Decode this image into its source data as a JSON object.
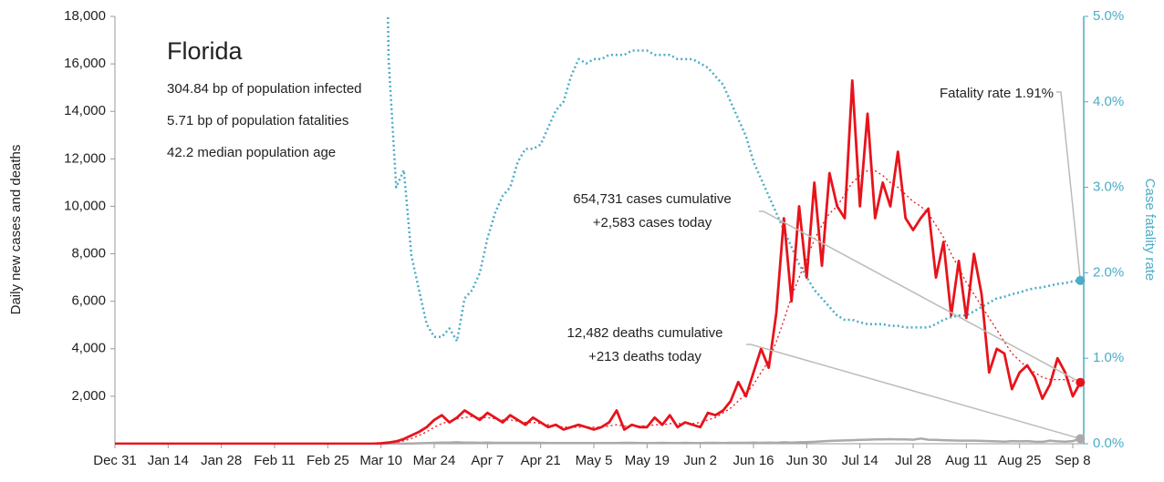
{
  "chart_data": {
    "type": "line",
    "title": "Florida",
    "annotations": [
      "304.84 bp of population infected",
      "5.71 bp of population fatalities",
      "42.2 median population age"
    ],
    "callouts": {
      "fatality": "Fatality rate 1.91%",
      "cases": [
        "654,731 cases cumulative",
        "+2,583 cases today"
      ],
      "deaths": [
        "12,482 deaths cumulative",
        "+213 deaths today"
      ]
    },
    "ylabel": "Daily new cases and deaths",
    "y2label": "Case fatality rate",
    "categories": [
      "Dec 31",
      null,
      null,
      null,
      null,
      null,
      null,
      "Jan 14",
      null,
      null,
      null,
      null,
      null,
      null,
      "Jan 28",
      null,
      null,
      null,
      null,
      null,
      null,
      "Feb 11",
      null,
      null,
      null,
      null,
      null,
      null,
      "Feb 25",
      null,
      null,
      null,
      null,
      null,
      null,
      "Mar 10",
      null,
      null,
      null,
      null,
      null,
      null,
      "Mar 24",
      null,
      null,
      null,
      null,
      null,
      null,
      "Apr 7",
      null,
      null,
      null,
      null,
      null,
      null,
      "Apr 21",
      null,
      null,
      null,
      null,
      null,
      null,
      "May 5",
      null,
      null,
      null,
      null,
      null,
      null,
      "May 19",
      null,
      null,
      null,
      null,
      null,
      null,
      "Jun 2",
      null,
      null,
      null,
      null,
      null,
      null,
      "Jun 16",
      null,
      null,
      null,
      null,
      null,
      null,
      "Jun 30",
      null,
      null,
      null,
      null,
      null,
      null,
      "Jul 14",
      null,
      null,
      null,
      null,
      null,
      null,
      "Jul 28",
      null,
      null,
      null,
      null,
      null,
      null,
      "Aug 11",
      null,
      null,
      null,
      null,
      null,
      null,
      "Aug 25",
      null,
      null,
      null,
      null,
      null,
      null,
      "Sep 8",
      null
    ],
    "series": [
      {
        "color": "#4bacc6",
        "style": "dotted",
        "axis": "y2",
        "width": 2.5,
        "values": [
          null,
          null,
          null,
          null,
          null,
          null,
          null,
          null,
          null,
          null,
          null,
          null,
          null,
          null,
          null,
          null,
          null,
          null,
          null,
          null,
          null,
          null,
          null,
          null,
          null,
          null,
          null,
          null,
          null,
          null,
          null,
          null,
          null,
          null,
          null,
          10,
          4.5,
          3.0,
          3.2,
          2.2,
          1.8,
          1.4,
          1.25,
          1.25,
          1.35,
          1.2,
          1.7,
          1.8,
          2.0,
          2.4,
          2.7,
          2.9,
          3.0,
          3.3,
          3.45,
          3.45,
          3.5,
          3.7,
          3.9,
          4.0,
          4.3,
          4.5,
          4.45,
          4.5,
          4.5,
          4.55,
          4.55,
          4.55,
          4.6,
          4.6,
          4.6,
          4.55,
          4.55,
          4.55,
          4.5,
          4.5,
          4.5,
          4.45,
          4.4,
          4.3,
          4.2,
          4.0,
          3.8,
          3.6,
          3.3,
          3.1,
          2.9,
          2.7,
          2.5,
          2.3,
          2.1,
          1.95,
          1.8,
          1.7,
          1.6,
          1.5,
          1.45,
          1.45,
          1.42,
          1.4,
          1.4,
          1.4,
          1.38,
          1.38,
          1.36,
          1.36,
          1.36,
          1.36,
          1.4,
          1.45,
          1.48,
          1.5,
          1.5,
          1.55,
          1.6,
          1.65,
          1.7,
          1.72,
          1.75,
          1.77,
          1.8,
          1.82,
          1.83,
          1.85,
          1.87,
          1.88,
          1.9,
          1.91
        ]
      },
      {
        "color": "#aaaaaa",
        "style": "solid",
        "width": 2.5,
        "values": [
          0,
          0,
          0,
          0,
          0,
          0,
          0,
          0,
          0,
          0,
          0,
          0,
          0,
          0,
          0,
          0,
          0,
          0,
          0,
          0,
          0,
          0,
          0,
          0,
          0,
          0,
          0,
          0,
          0,
          0,
          0,
          0,
          0,
          0,
          0,
          0,
          1,
          2,
          5,
          10,
          20,
          30,
          40,
          50,
          50,
          60,
          50,
          50,
          40,
          50,
          40,
          40,
          40,
          40,
          40,
          40,
          40,
          30,
          30,
          30,
          30,
          30,
          30,
          30,
          30,
          30,
          30,
          40,
          40,
          30,
          30,
          30,
          40,
          30,
          30,
          40,
          30,
          30,
          40,
          40,
          30,
          40,
          40,
          40,
          50,
          40,
          50,
          40,
          60,
          50,
          60,
          70,
          80,
          100,
          120,
          130,
          140,
          150,
          160,
          170,
          180,
          180,
          190,
          180,
          180,
          170,
          220,
          170,
          160,
          150,
          140,
          130,
          130,
          130,
          120,
          110,
          100,
          90,
          110,
          100,
          110,
          90,
          80,
          130,
          100,
          90,
          110,
          213
        ]
      },
      {
        "color": "#e8131b",
        "style": "dotted",
        "width": 1.3,
        "values": [
          0,
          0,
          0,
          0,
          0,
          0,
          0,
          0,
          0,
          0,
          0,
          0,
          0,
          0,
          0,
          0,
          0,
          0,
          0,
          0,
          0,
          0,
          0,
          0,
          0,
          0,
          0,
          0,
          0,
          0,
          0,
          0,
          0,
          0,
          0,
          10,
          30,
          60,
          120,
          220,
          350,
          500,
          700,
          850,
          950,
          1050,
          1100,
          1150,
          1100,
          1100,
          1050,
          1000,
          1000,
          950,
          900,
          900,
          850,
          800,
          750,
          700,
          700,
          700,
          700,
          700,
          700,
          750,
          800,
          750,
          750,
          750,
          750,
          800,
          800,
          850,
          850,
          850,
          850,
          900,
          1000,
          1100,
          1300,
          1500,
          1800,
          2100,
          2500,
          3000,
          3500,
          4300,
          5200,
          6200,
          7000,
          7800,
          8600,
          9200,
          9700,
          10000,
          10500,
          11000,
          11300,
          11500,
          11500,
          11300,
          11000,
          10800,
          10500,
          10200,
          10000,
          9700,
          9200,
          8700,
          8000,
          7400,
          6800,
          6300,
          5800,
          5300,
          4800,
          4300,
          3800,
          3500,
          3200,
          3000,
          2800,
          2700,
          2700,
          2700,
          2650,
          2600
        ]
      },
      {
        "color": "#e8131b",
        "style": "solid",
        "width": 2.8,
        "values": [
          0,
          0,
          0,
          0,
          0,
          0,
          0,
          0,
          0,
          0,
          0,
          0,
          0,
          0,
          0,
          0,
          0,
          0,
          0,
          0,
          0,
          0,
          0,
          0,
          0,
          0,
          0,
          0,
          0,
          0,
          0,
          0,
          0,
          0,
          0,
          20,
          50,
          100,
          200,
          350,
          500,
          700,
          1000,
          1200,
          900,
          1100,
          1400,
          1200,
          1000,
          1300,
          1100,
          900,
          1200,
          1000,
          800,
          1100,
          900,
          700,
          800,
          600,
          700,
          800,
          700,
          600,
          700,
          900,
          1400,
          600,
          800,
          700,
          700,
          1100,
          800,
          1200,
          700,
          900,
          800,
          700,
          1300,
          1200,
          1400,
          1800,
          2600,
          2000,
          3000,
          4000,
          3200,
          5500,
          9500,
          6000,
          10000,
          7000,
          11000,
          7500,
          11400,
          10000,
          9500,
          15300,
          10000,
          13900,
          9500,
          11000,
          10000,
          12300,
          9500,
          9000,
          9500,
          9900,
          7000,
          8500,
          5400,
          7700,
          5300,
          8000,
          6300,
          3000,
          4000,
          3800,
          2300,
          3000,
          3300,
          2800,
          1900,
          2500,
          3600,
          3000,
          2000,
          2583
        ]
      }
    ],
    "ylim": [
      0,
      18000
    ],
    "yticks": [
      {
        "value": 2000,
        "label": "2,000"
      },
      {
        "value": 4000,
        "label": "4,000"
      },
      {
        "value": 6000,
        "label": "6,000"
      },
      {
        "value": 8000,
        "label": "8,000"
      },
      {
        "value": 10000,
        "label": "10,000"
      },
      {
        "value": 12000,
        "label": "12,000"
      },
      {
        "value": 14000,
        "label": "14,000"
      },
      {
        "value": 16000,
        "label": "16,000"
      },
      {
        "value": 18000,
        "label": "18,000"
      }
    ],
    "y2lim": [
      0,
      5
    ],
    "y2ticks": [
      {
        "value": 0,
        "label": "0.0%"
      },
      {
        "value": 1,
        "label": "1.0%"
      },
      {
        "value": 2,
        "label": "2.0%"
      },
      {
        "value": 3,
        "label": "3.0%"
      },
      {
        "value": 4,
        "label": "4.0%"
      },
      {
        "value": 5,
        "label": "5.0%"
      }
    ],
    "y2color": "#4bacc6",
    "grid": false
  }
}
